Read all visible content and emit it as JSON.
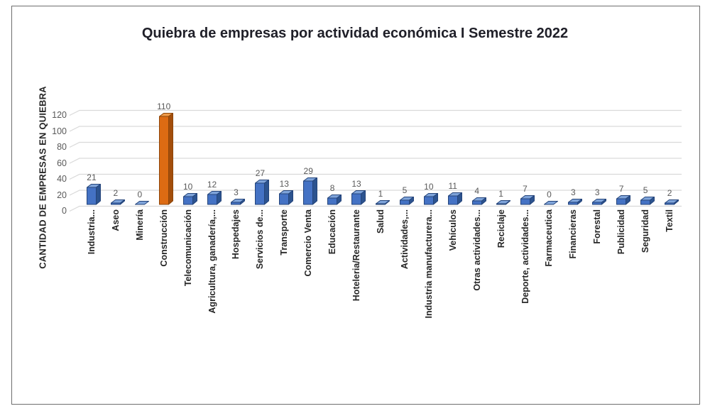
{
  "chart_data": {
    "type": "bar",
    "style": "3d-column",
    "title": "Quiebra de empresas por actividad económica I Semestre 2022",
    "xlabel": "",
    "ylabel": "CANTIDAD DE EMPRESAS EN QUIEBRA",
    "ylim": [
      0,
      120
    ],
    "yticks": [
      0,
      20,
      40,
      60,
      80,
      100,
      120
    ],
    "grid": true,
    "legend": false,
    "categories": [
      "Industria...",
      "Aseo",
      "Minería",
      "Construcción",
      "Telecomunicación",
      "Agricultura, ganadería,...",
      "Hospedajes",
      "Servicios de...",
      "Transporte",
      "Comercio Venta",
      "Educación",
      "Hoteleria/Restaurante",
      "Salud",
      "Actividades,...",
      "Industria manufacturera...",
      "Vehículos",
      "Otras actividades...",
      "Reciclaje",
      "Deporte, actividades...",
      "Farmaceutica",
      "Financieras",
      "Forestal",
      "Publicidad",
      "Seguridad",
      "Textil"
    ],
    "values": [
      21,
      2,
      0,
      110,
      10,
      12,
      3,
      27,
      13,
      29,
      8,
      13,
      1,
      5,
      10,
      11,
      4,
      1,
      7,
      0,
      3,
      3,
      7,
      5,
      2
    ],
    "colors": {
      "default": "#4472C4",
      "default_top": "#7FA4DA",
      "default_side": "#2C538F",
      "default_stroke": "#24447A",
      "highlight_index": 3,
      "highlight": "#DD6B13",
      "highlight_top": "#EE9A49",
      "highlight_side": "#A34E0B",
      "highlight_stroke": "#8C4509",
      "grid": "#D9D9D9",
      "tick_label": "#595959",
      "data_label": "#595959",
      "category_label": "#262626",
      "title": "#1F1F28"
    }
  }
}
